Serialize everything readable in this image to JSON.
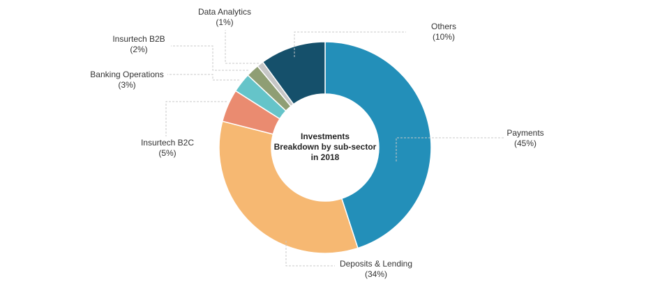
{
  "chart_data": {
    "type": "pie",
    "donut": true,
    "center_text": [
      "Investments",
      "Breakdown by sub-sector",
      "in 2018"
    ],
    "slices": [
      {
        "label": "Payments",
        "value_label": "(45%)",
        "value": 45,
        "color": "#238fb9"
      },
      {
        "label": "Deposits & Lending",
        "value_label": "(34%)",
        "value": 34,
        "color": "#f6b872"
      },
      {
        "label": "Insurtech B2C",
        "value_label": "(5%)",
        "value": 5,
        "color": "#ea8b70"
      },
      {
        "label": "Banking Operations",
        "value_label": "(3%)",
        "value": 3,
        "color": "#65c4c9"
      },
      {
        "label": "Insurtech B2B",
        "value_label": "(2%)",
        "value": 2,
        "color": "#8f9e74"
      },
      {
        "label": "Data Analytics",
        "value_label": "(1%)",
        "value": 1,
        "color": "#c6c6c6"
      },
      {
        "label": "Others",
        "value_label": "(10%)",
        "value": 10,
        "color": "#15506b"
      }
    ]
  }
}
